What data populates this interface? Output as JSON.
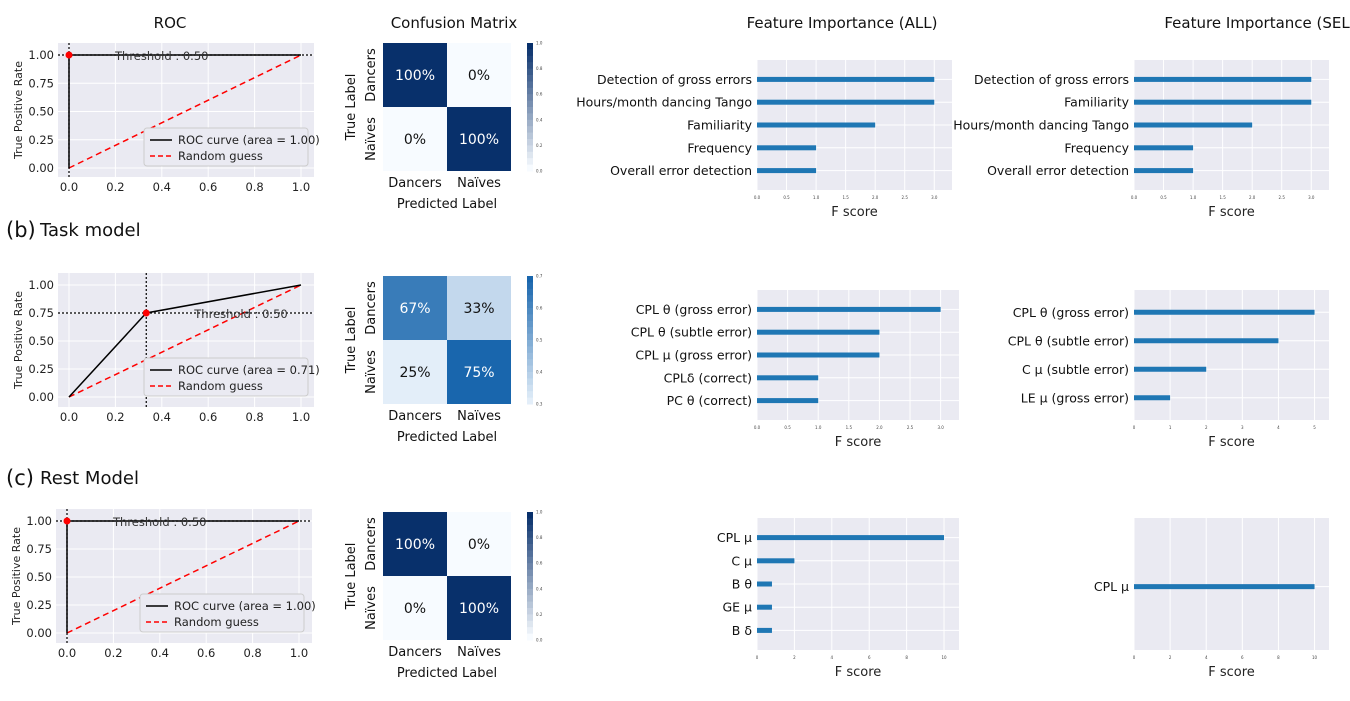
{
  "column_titles": {
    "roc": "ROC",
    "cm": "Confusion Matrix",
    "fi_all": "Feature Importance (ALL)",
    "fi_sel": "Feature Importance (SEL)"
  },
  "rows": [
    {
      "letter": "",
      "name": ""
    },
    {
      "letter": "(b)",
      "name": "Task model"
    },
    {
      "letter": "(c)",
      "name": "Rest Model"
    }
  ],
  "colors": {
    "panel_bg": "#eaeaf2",
    "grid": "#ffffff",
    "roc_line": "#000000",
    "random_line": "#ff0000",
    "bar": "#1f77b4",
    "cm_dark": "#08306b",
    "cm_light": "#f7fbff"
  },
  "chart_data": [
    {
      "id": "roc_a",
      "type": "line",
      "title": "",
      "xlabel": "",
      "ylabel": "True Positive Rate",
      "xlim": [
        0,
        1
      ],
      "ylim": [
        0,
        1
      ],
      "x_ticks": [
        "0.0",
        "0.2",
        "0.4",
        "0.6",
        "0.8",
        "1.0"
      ],
      "y_ticks": [
        "0.00",
        "0.25",
        "0.50",
        "0.75",
        "1.00"
      ],
      "series": [
        {
          "name": "ROC curve (area = 1.00)",
          "x": [
            0,
            0,
            1
          ],
          "y": [
            0,
            1,
            1
          ]
        },
        {
          "name": "Random guess",
          "x": [
            0,
            1
          ],
          "y": [
            0,
            1
          ]
        }
      ],
      "threshold_point": [
        0,
        1
      ],
      "threshold_label": "Threshold : 0.50",
      "legend_position": "lower-right",
      "grid": true
    },
    {
      "id": "roc_b",
      "type": "line",
      "title": "",
      "xlabel": "",
      "ylabel": "True Positive Rate",
      "xlim": [
        0,
        1
      ],
      "ylim": [
        0,
        1
      ],
      "x_ticks": [
        "0.0",
        "0.2",
        "0.4",
        "0.6",
        "0.8",
        "1.0"
      ],
      "y_ticks": [
        "0.00",
        "0.25",
        "0.50",
        "0.75",
        "1.00"
      ],
      "series": [
        {
          "name": "ROC curve (area = 0.71)",
          "x": [
            0,
            0.333,
            1
          ],
          "y": [
            0,
            0.75,
            1
          ]
        },
        {
          "name": "Random guess",
          "x": [
            0,
            1
          ],
          "y": [
            0,
            1
          ]
        }
      ],
      "threshold_point": [
        0.333,
        0.75
      ],
      "threshold_label": "Threshold : 0.50",
      "legend_position": "lower-right",
      "grid": true
    },
    {
      "id": "roc_c",
      "type": "line",
      "title": "",
      "xlabel": "",
      "ylabel": "True Positive Rate",
      "xlim": [
        0,
        1
      ],
      "ylim": [
        0,
        1
      ],
      "x_ticks": [
        "0.0",
        "0.2",
        "0.4",
        "0.6",
        "0.8",
        "1.0"
      ],
      "y_ticks": [
        "0.00",
        "0.25",
        "0.50",
        "0.75",
        "1.00"
      ],
      "series": [
        {
          "name": "ROC curve (area = 1.00)",
          "x": [
            0,
            0,
            1
          ],
          "y": [
            0,
            1,
            1
          ]
        },
        {
          "name": "Random guess",
          "x": [
            0,
            1
          ],
          "y": [
            0,
            1
          ]
        }
      ],
      "threshold_point": [
        0,
        1
      ],
      "threshold_label": "Threshold : 0.50",
      "legend_position": "lower-right",
      "grid": true
    },
    {
      "id": "cm_a",
      "type": "heatmap",
      "rows": [
        "Dancers",
        "Naïves"
      ],
      "cols": [
        "Dancers",
        "Naïves"
      ],
      "values": [
        [
          1.0,
          0.0
        ],
        [
          0.0,
          1.0
        ]
      ],
      "labels": [
        [
          "100%",
          "0%"
        ],
        [
          "0%",
          "100%"
        ]
      ],
      "ylabel": "True Label",
      "xlabel": "Predicted Label",
      "colorbar_ticks": [
        "0.0",
        "0.2",
        "0.4",
        "0.6",
        "0.8",
        "1.0"
      ],
      "vmin": 0,
      "vmax": 1
    },
    {
      "id": "cm_b",
      "type": "heatmap",
      "rows": [
        "Dancers",
        "Naïves"
      ],
      "cols": [
        "Dancers",
        "Naïves"
      ],
      "values": [
        [
          0.67,
          0.33
        ],
        [
          0.25,
          0.75
        ]
      ],
      "labels": [
        [
          "67%",
          "33%"
        ],
        [
          "25%",
          "75%"
        ]
      ],
      "ylabel": "True Label",
      "xlabel": "Predicted Label",
      "colorbar_ticks": [
        "0.3",
        "0.4",
        "0.5",
        "0.6",
        "0.7"
      ],
      "vmin": 0.25,
      "vmax": 0.75
    },
    {
      "id": "cm_c",
      "type": "heatmap",
      "rows": [
        "Dancers",
        "Naïves"
      ],
      "cols": [
        "Dancers",
        "Naïves"
      ],
      "values": [
        [
          1.0,
          0.0
        ],
        [
          0.0,
          1.0
        ]
      ],
      "labels": [
        [
          "100%",
          "0%"
        ],
        [
          "0%",
          "100%"
        ]
      ],
      "ylabel": "True Label",
      "xlabel": "Predicted Label",
      "colorbar_ticks": [
        "0.0",
        "0.2",
        "0.4",
        "0.6",
        "0.8",
        "1.0"
      ],
      "vmin": 0,
      "vmax": 1
    },
    {
      "id": "fi_all_a",
      "type": "bar",
      "orientation": "horizontal",
      "xlabel": "F score",
      "xlim": [
        0,
        3.3
      ],
      "x_ticks": [
        "0.0",
        "0.5",
        "1.0",
        "1.5",
        "2.0",
        "2.5",
        "3.0"
      ],
      "categories": [
        "Detection of gross errors",
        "Hours/month dancing Tango",
        "Familiarity",
        "Frequency",
        "Overall error detection"
      ],
      "values": [
        3,
        3,
        2,
        1,
        1
      ]
    },
    {
      "id": "fi_sel_a",
      "type": "bar",
      "orientation": "horizontal",
      "xlabel": "F score",
      "xlim": [
        0,
        3.3
      ],
      "x_ticks": [
        "0.0",
        "0.5",
        "1.0",
        "1.5",
        "2.0",
        "2.5",
        "3.0"
      ],
      "categories": [
        "Detection of gross errors",
        "Familiarity",
        "Hours/month dancing Tango",
        "Frequency",
        "Overall error detection"
      ],
      "values": [
        3,
        3,
        2,
        1,
        1
      ]
    },
    {
      "id": "fi_all_b",
      "type": "bar",
      "orientation": "horizontal",
      "xlabel": "F score",
      "xlim": [
        0,
        3.3
      ],
      "x_ticks": [
        "0.0",
        "0.5",
        "1.0",
        "1.5",
        "2.0",
        "2.5",
        "3.0"
      ],
      "categories": [
        "CPL θ (gross error)",
        "CPL θ (subtle error)",
        "CPL μ (gross error)",
        "CPLδ (correct)",
        "PC θ (correct)"
      ],
      "values": [
        3,
        2,
        2,
        1,
        1
      ]
    },
    {
      "id": "fi_sel_b",
      "type": "bar",
      "orientation": "horizontal",
      "xlabel": "F score",
      "xlim": [
        0,
        5.4
      ],
      "x_ticks": [
        "0",
        "1",
        "2",
        "3",
        "4",
        "5"
      ],
      "categories": [
        "CPL θ (gross error)",
        "CPL θ (subtle error)",
        "C μ (subtle error)",
        "LE μ (gross error)"
      ],
      "values": [
        5,
        4,
        2,
        1
      ]
    },
    {
      "id": "fi_all_c",
      "type": "bar",
      "orientation": "horizontal",
      "xlabel": "F score",
      "xlim": [
        0,
        10.8
      ],
      "x_ticks": [
        "0",
        "2",
        "4",
        "6",
        "8",
        "10"
      ],
      "categories": [
        "CPL μ",
        "C μ",
        "B θ",
        "GE μ",
        "B δ"
      ],
      "values": [
        10,
        2,
        0.8,
        0.8,
        0.8
      ]
    },
    {
      "id": "fi_sel_c",
      "type": "bar",
      "orientation": "horizontal",
      "xlabel": "F score",
      "xlim": [
        0,
        10.8
      ],
      "x_ticks": [
        "0",
        "2",
        "4",
        "6",
        "8",
        "10"
      ],
      "categories": [
        "CPL μ"
      ],
      "values": [
        10
      ]
    }
  ]
}
